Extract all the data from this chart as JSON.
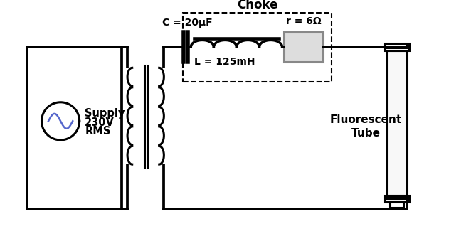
{
  "title": "Choke",
  "supply_label": [
    "Supply",
    "230V",
    "RMS"
  ],
  "capacitor_label": "C = 20μF",
  "inductor_label": "L = 125mH",
  "resistor_label": "r = 6Ω",
  "fluorescent_label": [
    "Fluorescent",
    "Tube"
  ],
  "bg_color": "#ffffff",
  "line_color": "#000000",
  "sine_color": "#5566cc",
  "resistor_fill": "#dddddd",
  "resistor_edge": "#888888"
}
